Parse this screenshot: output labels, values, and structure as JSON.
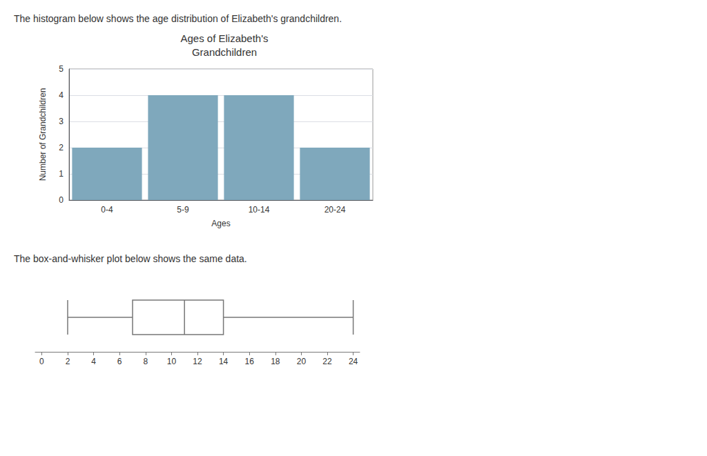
{
  "chart_data": [
    {
      "type": "bar",
      "annotations": [
        "The histogram below shows the age distribution of Elizabeth's grandchildren."
      ],
      "title": "Ages of Elizabeth's\nGrandchildren",
      "xlabel": "Ages",
      "ylabel": "Number of Grandchildren",
      "categories": [
        "0-4",
        "5-9",
        "10-14",
        "20-24"
      ],
      "values": [
        2,
        4,
        4,
        2
      ],
      "color": "#7fa8bc",
      "ylim": [
        0,
        5
      ],
      "yticks": [
        0,
        1,
        2,
        3,
        4,
        5
      ],
      "grid": true
    },
    {
      "type": "boxplot",
      "annotations": [
        "The box-and-whisker plot below shows the same data."
      ],
      "orientation": "horizontal",
      "min": 2,
      "q1": 7,
      "median": 11,
      "q3": 14,
      "max": 24,
      "color": "#777777",
      "xlim": [
        -0.5,
        24.5
      ],
      "xticks": [
        0,
        2,
        4,
        6,
        8,
        10,
        12,
        14,
        16,
        18,
        20,
        22,
        24
      ],
      "grid": false,
      "tick_labels": "x"
    }
  ]
}
